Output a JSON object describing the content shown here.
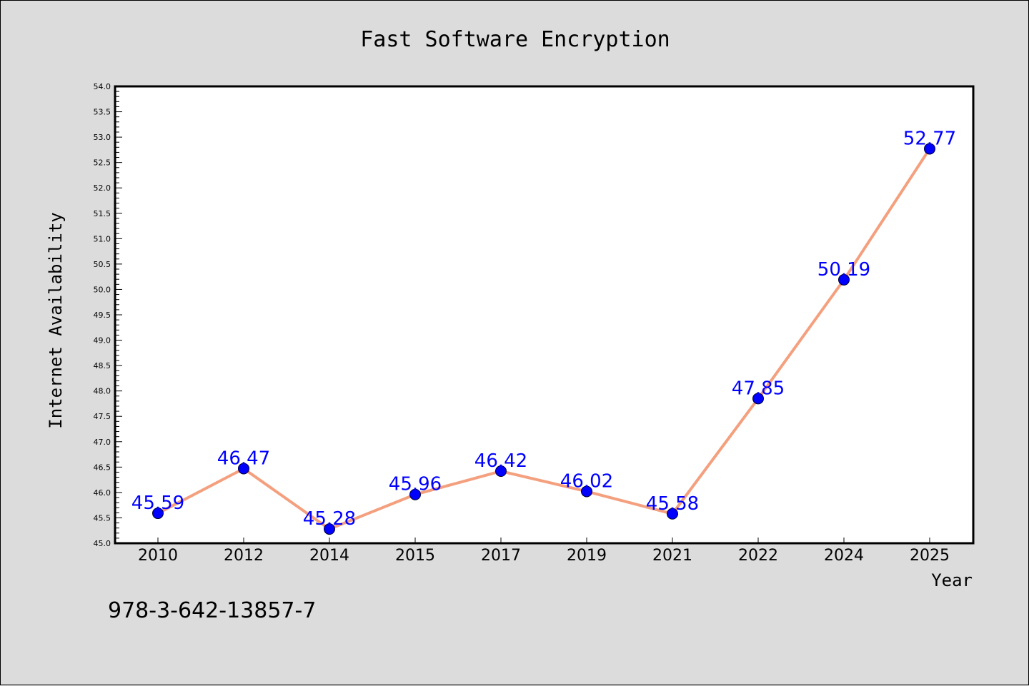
{
  "chart_data": {
    "type": "line",
    "title": "Fast Software Encryption",
    "xlabel": "Year",
    "ylabel": "Internet Availability",
    "categories": [
      "2010",
      "2012",
      "2014",
      "2015",
      "2017",
      "2019",
      "2021",
      "2022",
      "2024",
      "2025"
    ],
    "series": [
      {
        "values": [
          45.59,
          46.47,
          45.28,
          45.96,
          46.42,
          46.02,
          45.58,
          47.85,
          50.19,
          52.77
        ],
        "labels": [
          "45.59",
          "46.47",
          "45.28",
          "45.96",
          "46.42",
          "46.02",
          "45.58",
          "47.85",
          "50.19",
          "52.77"
        ]
      }
    ],
    "ylim": [
      45.0,
      54.0
    ],
    "yticks": [
      "45.0",
      "45.5",
      "46.0",
      "46.5",
      "47.0",
      "47.5",
      "48.0",
      "48.5",
      "49.0",
      "49.5",
      "50.0",
      "50.5",
      "51.0",
      "51.5",
      "52.0",
      "52.5",
      "53.0",
      "53.5",
      "54.0"
    ],
    "grid": false,
    "colors": {
      "line": "#f4a07e",
      "marker": "#0000ff",
      "label": "#0000ff",
      "background": "#dcdcdc",
      "plot_background": "#ffffff"
    }
  },
  "footer": {
    "isbn": "978-3-642-13857-7"
  }
}
